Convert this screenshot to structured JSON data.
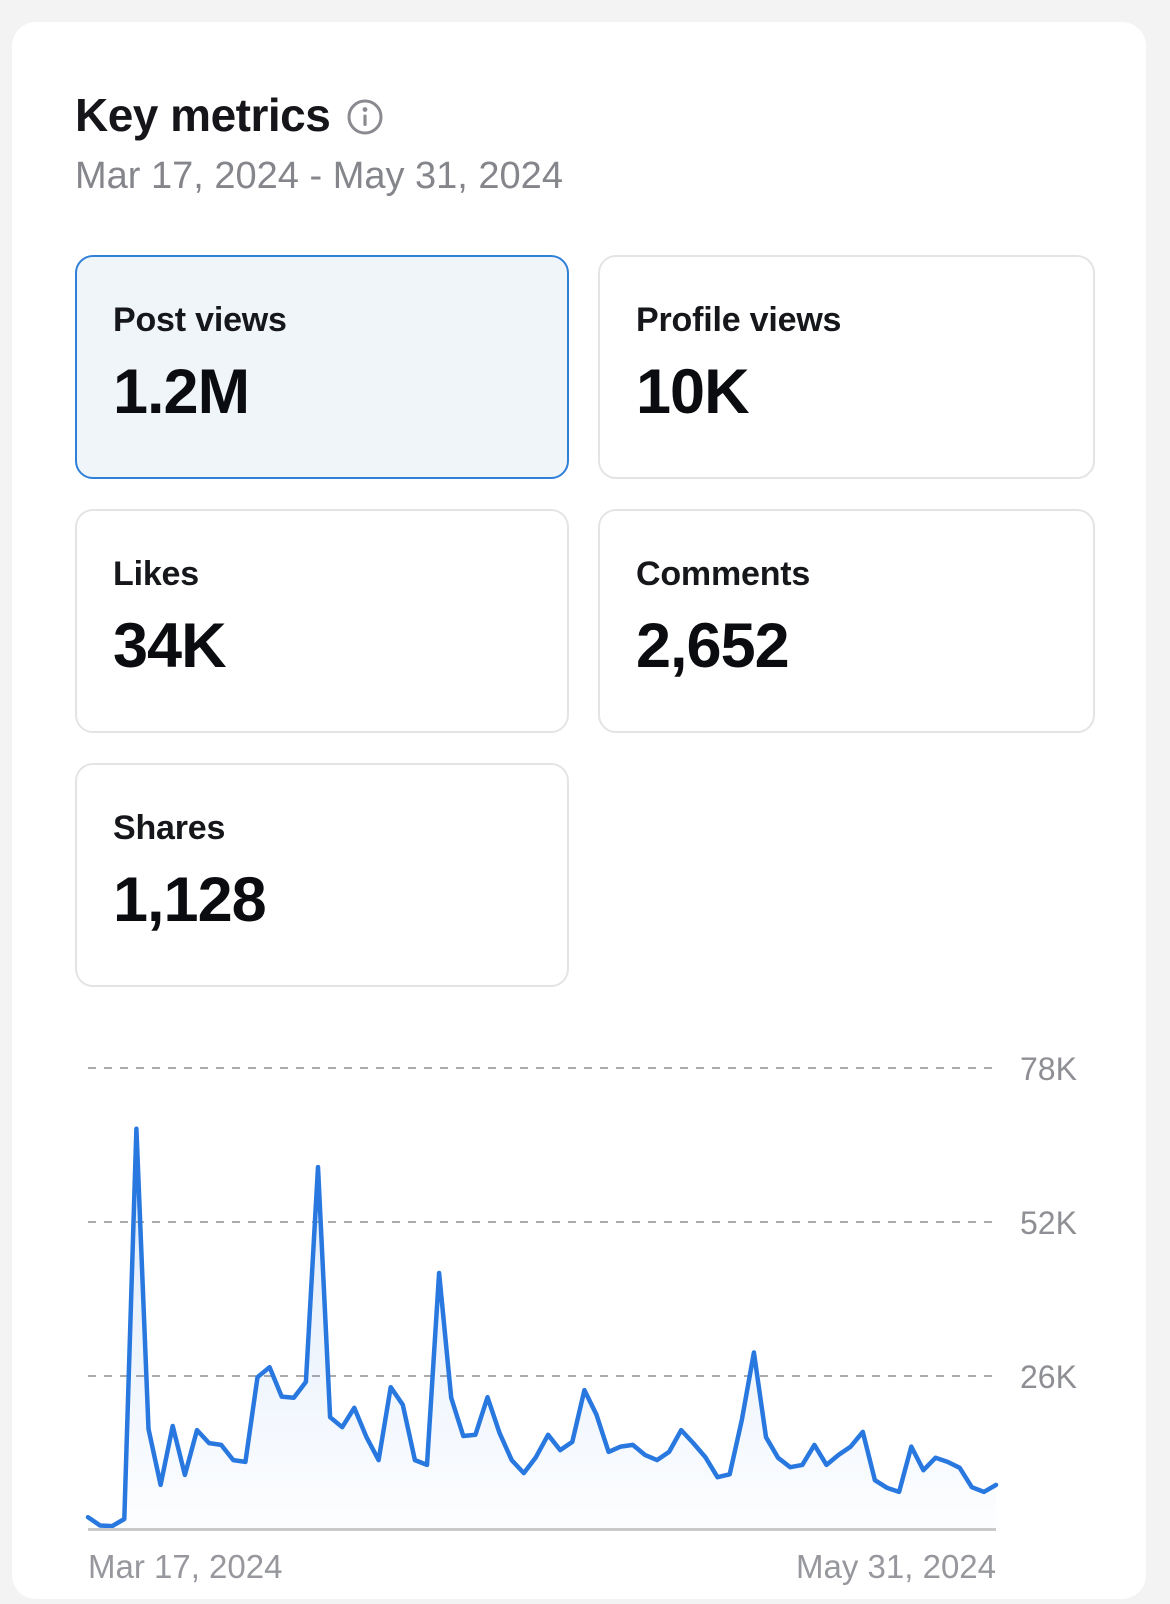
{
  "header": {
    "title": "Key metrics",
    "date_range": "Mar 17, 2024 - May 31, 2024"
  },
  "metric_cards": [
    {
      "label": "Post views",
      "value": "1.2M",
      "selected": true
    },
    {
      "label": "Profile views",
      "value": "10K",
      "selected": false
    },
    {
      "label": "Likes",
      "value": "34K",
      "selected": false
    },
    {
      "label": "Comments",
      "value": "2,652",
      "selected": false
    },
    {
      "label": "Shares",
      "value": "1,128",
      "selected": false
    }
  ],
  "colors": {
    "page_background": "#f3f3f4",
    "panel_background": "#ffffff",
    "selected_card_border": "#3080d8",
    "selected_card_background": "#f0f5fa",
    "card_border": "#e4e4e7",
    "chart_line": "#2878e0",
    "gridline": "#ababab",
    "axis_line": "#c9cacc",
    "muted_text": "#85868c"
  },
  "chart_data": {
    "type": "area",
    "metric": "Post views (daily)",
    "x_start_label": "Mar 17, 2024",
    "x_end_label": "May 31, 2024",
    "y_ticks_top_to_bottom": [
      "78K",
      "52K",
      "26K"
    ],
    "ylim_thousands": [
      0,
      84
    ],
    "unit": "thousands",
    "grid": "dashed horizontal lines at 26K, 52K, 78K",
    "legend": "none",
    "values": [
      2,
      0.6,
      0.5,
      1.7,
      68,
      17,
      7.5,
      17.5,
      9.2,
      16.8,
      14.6,
      14.3,
      11.7,
      11.4,
      25.8,
      27.5,
      22.5,
      22.3,
      25,
      61.5,
      19,
      17.3,
      20.6,
      15.6,
      11.7,
      24.1,
      21.1,
      11.7,
      10.9,
      43.5,
      22.3,
      15.8,
      16,
      22.4,
      16.3,
      11.7,
      9.5,
      12.2,
      16,
      13.4,
      14.8,
      23.6,
      19.4,
      13.1,
      14,
      14.3,
      12.6,
      11.7,
      13.1,
      16.8,
      14.6,
      12.2,
      8.8,
      9.3,
      18.5,
      30,
      15.6,
      12.1,
      10.5,
      10.9,
      14.3,
      10.9,
      12.6,
      14,
      16.5,
      8.3,
      7,
      6.3,
      14,
      10,
      12.1,
      11.4,
      10.4,
      7.1,
      6.3,
      7.5
    ]
  }
}
